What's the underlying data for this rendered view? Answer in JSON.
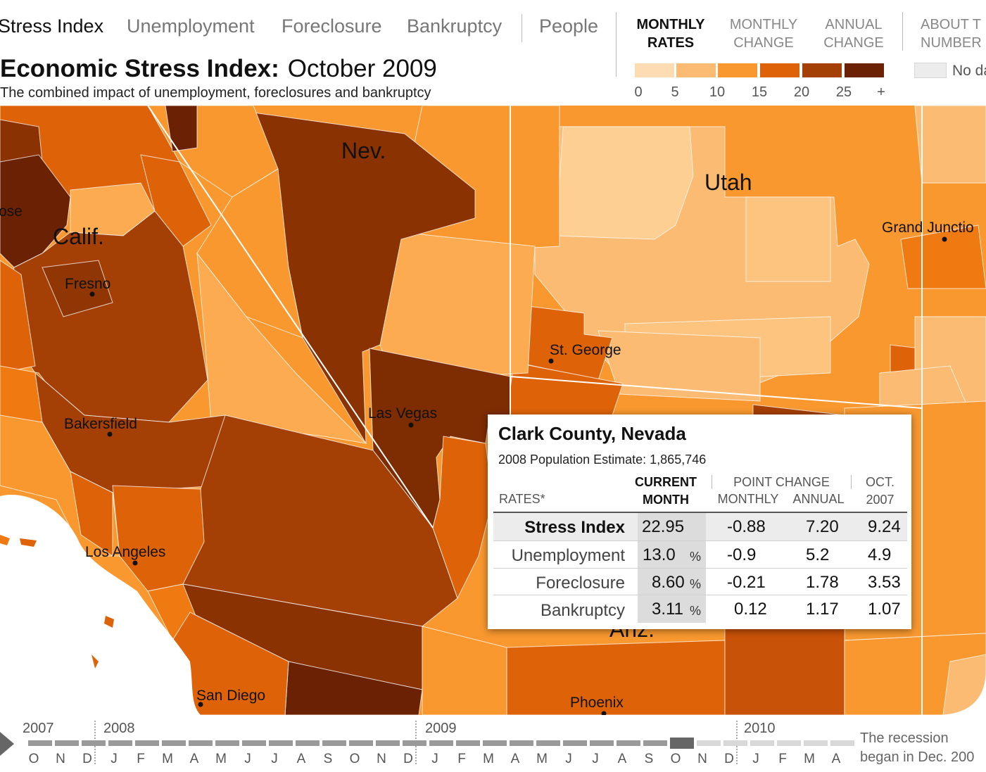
{
  "nav": {
    "tabs": [
      {
        "label": "Stress Index",
        "active": true
      },
      {
        "label": "Unemployment",
        "active": false
      },
      {
        "label": "Foreclosure",
        "active": false
      },
      {
        "label": "Bankruptcy",
        "active": false
      },
      {
        "label": "People",
        "active": false
      }
    ],
    "rate_options": [
      {
        "line1": "MONTHLY",
        "line2": "RATES",
        "active": true
      },
      {
        "line1": "MONTHLY",
        "line2": "CHANGE",
        "active": false
      },
      {
        "line1": "ANNUAL",
        "line2": "CHANGE",
        "active": false
      }
    ],
    "about": {
      "line1": "ABOUT T",
      "line2": "NUMBER"
    }
  },
  "header": {
    "title": "Economic Stress Index:",
    "month": "October 2009",
    "subtitle": "The combined impact of unemployment, foreclosures and bankruptcy"
  },
  "legend": {
    "colors": [
      "#fddcb4",
      "#fcbb72",
      "#f9982f",
      "#de6308",
      "#a43f06",
      "#6b2103"
    ],
    "ticks": [
      "0",
      "5",
      "10",
      "15",
      "20",
      "25",
      "+"
    ],
    "no_data_label": "No da",
    "no_data_color": "#ececec"
  },
  "map": {
    "states": [
      "Nev.",
      "Utah",
      "Calif.",
      "Ariz."
    ],
    "cities": [
      "Fresno",
      "Bakersfield",
      "Los Angeles",
      "San Diego",
      "Las Vegas",
      "St. George",
      "Phoenix",
      "Grand Junctio"
    ],
    "partial_labels": [
      "ose"
    ]
  },
  "popup": {
    "county": "Clark County, Nevada",
    "population_label": "2008 Population Estimate:",
    "population": "1,865,746",
    "headers": {
      "rates": "RATES*",
      "current_1": "CURRENT",
      "current_2": "MONTH",
      "point_change": "POINT CHANGE",
      "monthly": "MONTHLY",
      "annual": "ANNUAL",
      "ref_1": "OCT.",
      "ref_2": "2007"
    },
    "rows": [
      {
        "label": "Stress Index",
        "current": "22.95",
        "unit": "",
        "monthly": "-0.88",
        "annual": "7.20",
        "ref": "9.24"
      },
      {
        "label": "Unemployment",
        "current": "13.0",
        "unit": "%",
        "monthly": "-0.9",
        "annual": "5.2",
        "ref": "4.9"
      },
      {
        "label": "Foreclosure",
        "current": "8.60",
        "unit": "%",
        "monthly": "-0.21",
        "annual": "1.78",
        "ref": "3.53"
      },
      {
        "label": "Bankruptcy",
        "current": "3.11",
        "unit": "%",
        "monthly": "0.12",
        "annual": "1.17",
        "ref": "1.07"
      }
    ]
  },
  "timeline": {
    "years": [
      "2007",
      "2008",
      "2009",
      "2010"
    ],
    "months": [
      "O",
      "N",
      "D",
      "J",
      "F",
      "M",
      "A",
      "M",
      "J",
      "J",
      "A",
      "S",
      "O",
      "N",
      "D",
      "J",
      "F",
      "M",
      "A",
      "M",
      "J",
      "J",
      "A",
      "S",
      "O",
      "N",
      "D",
      "J",
      "F",
      "M",
      "A"
    ],
    "selected": "October 2009",
    "note_1": "The recession",
    "note_2": "began in Dec. 200"
  }
}
